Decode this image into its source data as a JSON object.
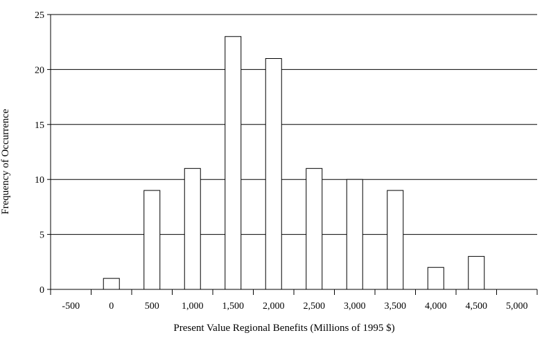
{
  "chart_data": {
    "type": "bar",
    "categories": [
      "-500",
      "0",
      "500",
      "1,000",
      "1,500",
      "2,000",
      "2,500",
      "3,000",
      "3,500",
      "4,000",
      "4,500",
      "5,000"
    ],
    "values": [
      0,
      1,
      9,
      11,
      23,
      21,
      11,
      10,
      9,
      2,
      3,
      0
    ],
    "xlabel": "Present Value Regional Benefits (Millions of 1995 $)",
    "ylabel": "Frequency of Occurrence",
    "ylim": [
      0,
      25
    ],
    "yticks": [
      "0",
      "5",
      "10",
      "15",
      "20",
      "25"
    ],
    "grid": true
  }
}
